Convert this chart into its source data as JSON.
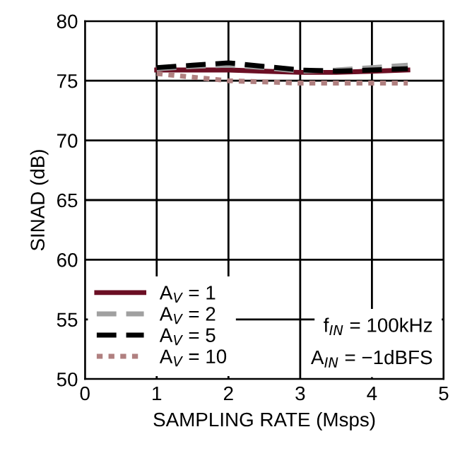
{
  "chart_data": {
    "type": "line",
    "xlabel": "SAMPLING RATE (Msps)",
    "ylabel": "SINAD (dB)",
    "xlim": [
      0,
      5
    ],
    "ylim": [
      50,
      80
    ],
    "xticks": [
      0,
      1,
      2,
      3,
      4,
      5
    ],
    "yticks": [
      50,
      55,
      60,
      65,
      70,
      75,
      80
    ],
    "grid": true,
    "legend": "bottom left",
    "x": [
      1,
      1.5,
      2,
      2.5,
      3,
      3.5,
      4,
      4.5
    ],
    "series": [
      {
        "name": "A$_{V}$ = 1",
        "color": "#6b0f24",
        "line_style": "solid",
        "values": [
          75.9,
          75.9,
          75.9,
          75.8,
          75.7,
          75.7,
          75.8,
          75.9
        ]
      },
      {
        "name": "A$_{V}$ = 2",
        "color": "#a0a0a0",
        "line_style": "dashed",
        "values": [
          76.0,
          76.2,
          76.3,
          76.1,
          75.8,
          75.9,
          76.1,
          76.3
        ]
      },
      {
        "name": "A$_{V}$ = 5",
        "color": "#000000",
        "line_style": "dashed",
        "values": [
          76.1,
          76.3,
          76.5,
          76.2,
          75.9,
          75.8,
          75.9,
          76.0
        ]
      },
      {
        "name": "A$_{V}$ = 10",
        "color": "#b08080",
        "line_style": "dotted",
        "values": [
          75.6,
          75.3,
          75.0,
          74.9,
          74.8,
          74.8,
          74.8,
          74.8
        ]
      }
    ],
    "annotations": [
      "f$_{IN}$ = 100kHz",
      "A$_{IN}$ = −1dBFS"
    ]
  }
}
